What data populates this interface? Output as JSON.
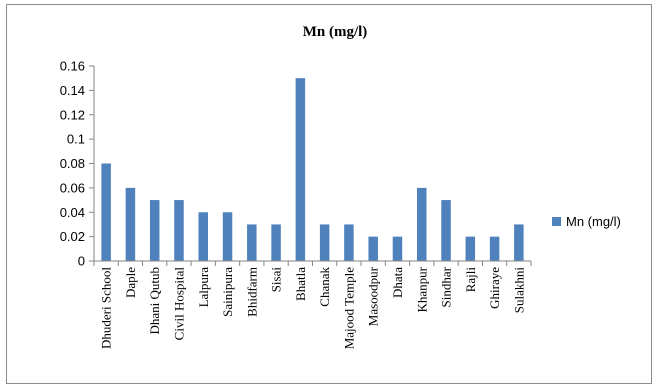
{
  "chart_data": {
    "type": "bar",
    "title": "Mn (mg/l)",
    "categories": [
      "Dhuderi School",
      "Daple",
      "Dhani Qutub",
      "Civil Hospital",
      "Lalpura",
      "Sainipura",
      "Bhidfarm",
      "Sisai",
      "Bhatla",
      "Chanak",
      "Majood Temple",
      "Masoodpur",
      "Dhata",
      "Khanpur",
      "Sindhar",
      "Rajli",
      "Ghiraye",
      "Sulakhni"
    ],
    "series": [
      {
        "name": "Mn (mg/l)",
        "color": "#4f81bd",
        "values": [
          0.08,
          0.06,
          0.05,
          0.05,
          0.04,
          0.04,
          0.03,
          0.03,
          0.15,
          0.03,
          0.03,
          0.02,
          0.02,
          0.06,
          0.05,
          0.02,
          0.02,
          0.03
        ]
      }
    ],
    "yticks": [
      "0",
      "0.02",
      "0.04",
      "0.06",
      "0.08",
      "0.1",
      "0.12",
      "0.14",
      "0.16"
    ],
    "ylim": [
      0,
      0.16
    ],
    "xlabel": "",
    "ylabel": "",
    "grid": false,
    "legend_position": "right"
  }
}
